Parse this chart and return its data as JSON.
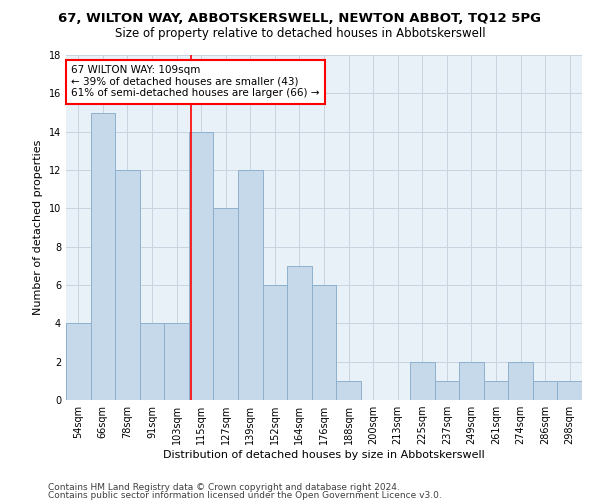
{
  "title": "67, WILTON WAY, ABBOTSKERSWELL, NEWTON ABBOT, TQ12 5PG",
  "subtitle": "Size of property relative to detached houses in Abbotskerswell",
  "xlabel": "Distribution of detached houses by size in Abbotskerswell",
  "ylabel": "Number of detached properties",
  "footer1": "Contains HM Land Registry data © Crown copyright and database right 2024.",
  "footer2": "Contains public sector information licensed under the Open Government Licence v3.0.",
  "categories": [
    "54sqm",
    "66sqm",
    "78sqm",
    "91sqm",
    "103sqm",
    "115sqm",
    "127sqm",
    "139sqm",
    "152sqm",
    "164sqm",
    "176sqm",
    "188sqm",
    "200sqm",
    "213sqm",
    "225sqm",
    "237sqm",
    "249sqm",
    "261sqm",
    "274sqm",
    "286sqm",
    "298sqm"
  ],
  "values": [
    4,
    15,
    12,
    4,
    4,
    14,
    10,
    12,
    6,
    7,
    6,
    1,
    0,
    0,
    2,
    1,
    2,
    1,
    2,
    1,
    1
  ],
  "bar_color": "#c6d9ea",
  "bar_edge_color": "#8fb0cc",
  "grid_color": "#c8d4e0",
  "red_line_bar_index": 4.58,
  "annotation_text": "67 WILTON WAY: 109sqm\n← 39% of detached houses are smaller (43)\n61% of semi-detached houses are larger (66) →",
  "annotation_box_color": "white",
  "annotation_box_edge_color": "red",
  "line_color": "red",
  "ylim": [
    0,
    18
  ],
  "yticks": [
    0,
    2,
    4,
    6,
    8,
    10,
    12,
    14,
    16,
    18
  ],
  "title_fontsize": 9.5,
  "subtitle_fontsize": 8.5,
  "xlabel_fontsize": 8,
  "ylabel_fontsize": 8,
  "tick_fontsize": 7,
  "annotation_fontsize": 7.5,
  "footer_fontsize": 6.5
}
